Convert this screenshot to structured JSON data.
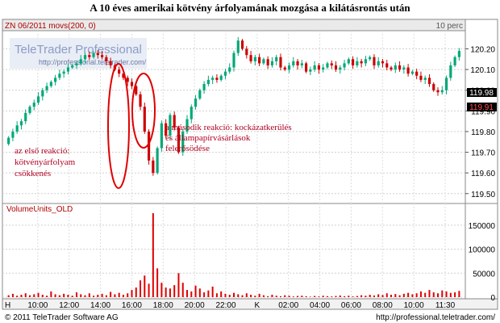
{
  "title": "A 10 éves amerikai kötvény árfolyamának mozgása a kilátásrontás után",
  "header": {
    "left": "ZN 06/2011  movs(200, 0)",
    "interval": "10 perc"
  },
  "branding": {
    "name": "TeleTrader Professional",
    "url": "http://professional.teletrader.com/"
  },
  "volume_label": "VolumeUnits_OLD",
  "footer": {
    "copyright": "© 2011 TeleTrader Software AG",
    "url": "http://professional.teletrader.com/"
  },
  "annotations": {
    "first": [
      "az első reakció:",
      "kötvényárfolyam",
      "csökkenés"
    ],
    "second": [
      "a második reakció: kockázatkerülés",
      "és állampapírvásárlások",
      "felerősödése"
    ]
  },
  "chart_data": [
    {
      "type": "candlestick",
      "title": "A 10 éves amerikai kötvény árfolyamának mozgása a kilátásrontás után",
      "series": [
        {
          "name": "ZN 06/2011"
        }
      ],
      "x_ticks": [
        "H",
        "10:00",
        "12:00",
        "14:00",
        "16:00",
        "18:00",
        "20:00",
        "22:00",
        "K",
        "02:00",
        "04:00",
        "06:00",
        "08:00",
        "10:00",
        "11:30"
      ],
      "y_ticks": [
        "119.50",
        "119.60",
        "119.70",
        "119.80",
        "119.90",
        "120.00",
        "120.10",
        "120.20"
      ],
      "ylim": [
        119.46,
        120.28
      ],
      "price_tags": [
        "119.98",
        "119.91"
      ],
      "colors": {
        "up": "#00a878",
        "down": "#cc0000"
      },
      "close": [
        119.77,
        119.8,
        119.83,
        119.85,
        119.89,
        119.92,
        119.94,
        119.97,
        120.0,
        120.02,
        120.04,
        120.06,
        120.08,
        120.09,
        120.11,
        120.12,
        120.13,
        120.15,
        120.17,
        120.16,
        120.18,
        120.17,
        120.16,
        120.14,
        120.12,
        120.1,
        120.08,
        120.06,
        120.04,
        120.02,
        119.98,
        119.92,
        119.8,
        119.66,
        119.6,
        119.72,
        119.84,
        119.78,
        119.88,
        119.82,
        119.7,
        119.8,
        119.86,
        119.92,
        119.96,
        120.0,
        120.03,
        120.05,
        120.06,
        120.05,
        120.07,
        120.09,
        120.11,
        120.18,
        120.24,
        120.2,
        120.17,
        120.14,
        120.16,
        120.13,
        120.15,
        120.12,
        120.14,
        120.16,
        120.11,
        120.1,
        120.12,
        120.14,
        120.12,
        120.13,
        120.09,
        120.1,
        120.12,
        120.1,
        120.11,
        120.13,
        120.12,
        120.1,
        120.11,
        120.13,
        120.15,
        120.12,
        120.14,
        120.13,
        120.15,
        120.16,
        120.12,
        120.14,
        120.13,
        120.11,
        120.1,
        120.12,
        120.1,
        120.11,
        120.08,
        120.09,
        120.07,
        120.05,
        120.06,
        120.03,
        120.0,
        119.99,
        120.0,
        120.06,
        120.12,
        120.16,
        120.19
      ]
    },
    {
      "type": "bar",
      "title": "VolumeUnits_OLD",
      "y_ticks": [
        "0",
        "50000",
        "100000",
        "150000"
      ],
      "ylim": [
        0,
        175000
      ],
      "values": [
        4000,
        7000,
        3000,
        5000,
        8000,
        4000,
        6000,
        9000,
        5000,
        3000,
        12000,
        6000,
        4000,
        7000,
        5000,
        3000,
        10000,
        6000,
        4000,
        8000,
        3000,
        5000,
        7000,
        4000,
        11000,
        6000,
        9000,
        5000,
        8000,
        15000,
        20000,
        35000,
        45000,
        28000,
        175000,
        60000,
        30000,
        20000,
        18000,
        25000,
        50000,
        30000,
        15000,
        12000,
        24000,
        18000,
        10000,
        14000,
        22000,
        8000,
        12000,
        7000,
        5000,
        9000,
        6000,
        4000,
        8000,
        5000,
        3000,
        7000,
        4000,
        2000,
        5000,
        3000,
        2000,
        4000,
        3000,
        1500,
        2500,
        3000,
        2000,
        1000,
        2500,
        1500,
        3000,
        2000,
        1500,
        2500,
        3500,
        2000,
        3000,
        1500,
        2500,
        4000,
        3000,
        5000,
        3500,
        6000,
        4500,
        8000,
        5000,
        6500,
        4000,
        7000,
        9000,
        6000,
        8000,
        12000,
        9000,
        15000,
        10000,
        8000,
        14000,
        12000,
        9000,
        10000,
        13000
      ]
    }
  ]
}
